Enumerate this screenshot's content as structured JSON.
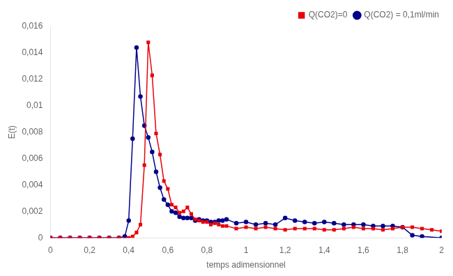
{
  "chart_data": {
    "type": "line",
    "xlabel": "temps adimensionnel",
    "ylabel": "E(t)",
    "xlim": [
      0,
      2
    ],
    "ylim": [
      0,
      0.016
    ],
    "xticks": [
      0,
      {
        "value": 0.2,
        "label": "0,2"
      },
      {
        "value": 0.4,
        "label": "0,4"
      },
      {
        "value": 0.6,
        "label": "0,6"
      },
      {
        "value": 0.8,
        "label": "0,8"
      },
      1,
      {
        "value": 1.2,
        "label": "1,2"
      },
      {
        "value": 1.4,
        "label": "1,4"
      },
      {
        "value": 1.6,
        "label": "1,6"
      },
      {
        "value": 1.8,
        "label": "1,8"
      },
      2
    ],
    "yticks": [
      0,
      {
        "value": 0.002,
        "label": "0,002"
      },
      {
        "value": 0.004,
        "label": "0,004"
      },
      {
        "value": 0.006,
        "label": "0,006"
      },
      {
        "value": 0.008,
        "label": "0,008"
      },
      {
        "value": 0.01,
        "label": "0,01"
      },
      {
        "value": 0.012,
        "label": "0,012"
      },
      {
        "value": 0.014,
        "label": "0,014"
      },
      {
        "value": 0.016,
        "label": "0,016"
      }
    ],
    "grid": false,
    "legend": "upper right",
    "series": [
      {
        "name": "Q(CO2)=0",
        "color": "#e8000a",
        "marker": "square",
        "x": [
          0.0,
          0.05,
          0.1,
          0.15,
          0.2,
          0.25,
          0.3,
          0.35,
          0.4,
          0.42,
          0.44,
          0.46,
          0.48,
          0.5,
          0.52,
          0.54,
          0.56,
          0.58,
          0.6,
          0.62,
          0.64,
          0.66,
          0.68,
          0.7,
          0.72,
          0.74,
          0.76,
          0.78,
          0.8,
          0.82,
          0.84,
          0.86,
          0.88,
          0.9,
          0.95,
          1.0,
          1.05,
          1.1,
          1.15,
          1.2,
          1.25,
          1.3,
          1.35,
          1.4,
          1.45,
          1.5,
          1.55,
          1.6,
          1.65,
          1.7,
          1.75,
          1.8,
          1.85,
          1.9,
          1.95,
          2.0
        ],
        "values": [
          0.0,
          0.0,
          0.0,
          0.0,
          0.0,
          0.0,
          0.0,
          0.0,
          0.0,
          0.0001,
          0.0004,
          0.001,
          0.0055,
          0.0148,
          0.0123,
          0.0079,
          0.0063,
          0.0043,
          0.0037,
          0.0025,
          0.0023,
          0.0019,
          0.002,
          0.0023,
          0.0018,
          0.0014,
          0.0013,
          0.0012,
          0.0012,
          0.001,
          0.0011,
          0.001,
          0.0009,
          0.0009,
          0.0007,
          0.0008,
          0.0007,
          0.0008,
          0.0007,
          0.0006,
          0.0007,
          0.0007,
          0.0007,
          0.0006,
          0.0006,
          0.0007,
          0.0008,
          0.0007,
          0.0007,
          0.0006,
          0.0007,
          0.0008,
          0.0008,
          0.0007,
          0.0006,
          0.0005
        ]
      },
      {
        "name": "Q(CO2) = 0,1ml/min",
        "color": "#00008b",
        "marker": "circle",
        "x": [
          0.0,
          0.05,
          0.1,
          0.15,
          0.2,
          0.25,
          0.3,
          0.35,
          0.38,
          0.4,
          0.42,
          0.44,
          0.46,
          0.48,
          0.5,
          0.52,
          0.54,
          0.56,
          0.58,
          0.6,
          0.62,
          0.64,
          0.66,
          0.68,
          0.7,
          0.72,
          0.74,
          0.76,
          0.78,
          0.8,
          0.82,
          0.84,
          0.86,
          0.88,
          0.9,
          0.95,
          1.0,
          1.05,
          1.1,
          1.15,
          1.2,
          1.25,
          1.3,
          1.35,
          1.4,
          1.45,
          1.5,
          1.55,
          1.6,
          1.65,
          1.7,
          1.75,
          1.8,
          1.85,
          1.9,
          2.0
        ],
        "values": [
          0.0,
          0.0,
          0.0,
          0.0,
          0.0,
          0.0,
          0.0,
          0.0,
          0.0001,
          0.0013,
          0.0075,
          0.0144,
          0.0107,
          0.0085,
          0.0076,
          0.0065,
          0.005,
          0.0038,
          0.0029,
          0.0025,
          0.002,
          0.0019,
          0.0016,
          0.0015,
          0.0015,
          0.0015,
          0.0013,
          0.0014,
          0.0013,
          0.0013,
          0.0012,
          0.0012,
          0.0013,
          0.0013,
          0.0014,
          0.0011,
          0.0012,
          0.001,
          0.0011,
          0.001,
          0.0015,
          0.0013,
          0.0012,
          0.0011,
          0.0012,
          0.0011,
          0.001,
          0.001,
          0.001,
          0.0009,
          0.0009,
          0.0009,
          0.0008,
          0.0002,
          0.0001,
          0.0
        ]
      }
    ]
  }
}
